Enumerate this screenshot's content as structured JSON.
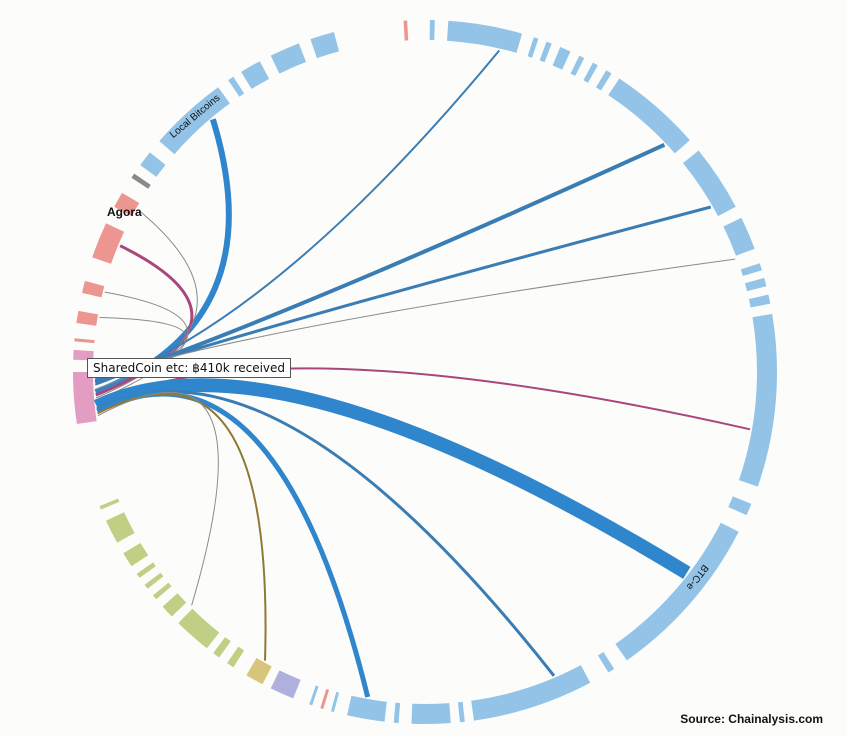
{
  "colors": {
    "exchange": "#93c4e8",
    "exchange_ribbon": "#3a7db4",
    "exchange_ribbon_thick": "#2f86cc",
    "market": "#ec9591",
    "market_ribbon": "#a8477a",
    "mixer": "#e49dc2",
    "gambling": "#bfcf83",
    "other_gold": "#d6c57a",
    "other_gold_ribbon": "#8f7a34",
    "other_purple": "#b0b0de",
    "thin_ribbon": "#8a8a8a"
  },
  "labels": {
    "agora": "Agora",
    "local_bitcoins": "Local Bitcoins",
    "btc_e": "BTC-e"
  },
  "tooltip": "SharedCoin etc: ฿410k received",
  "source": "Source: Chainalysis.com"
}
